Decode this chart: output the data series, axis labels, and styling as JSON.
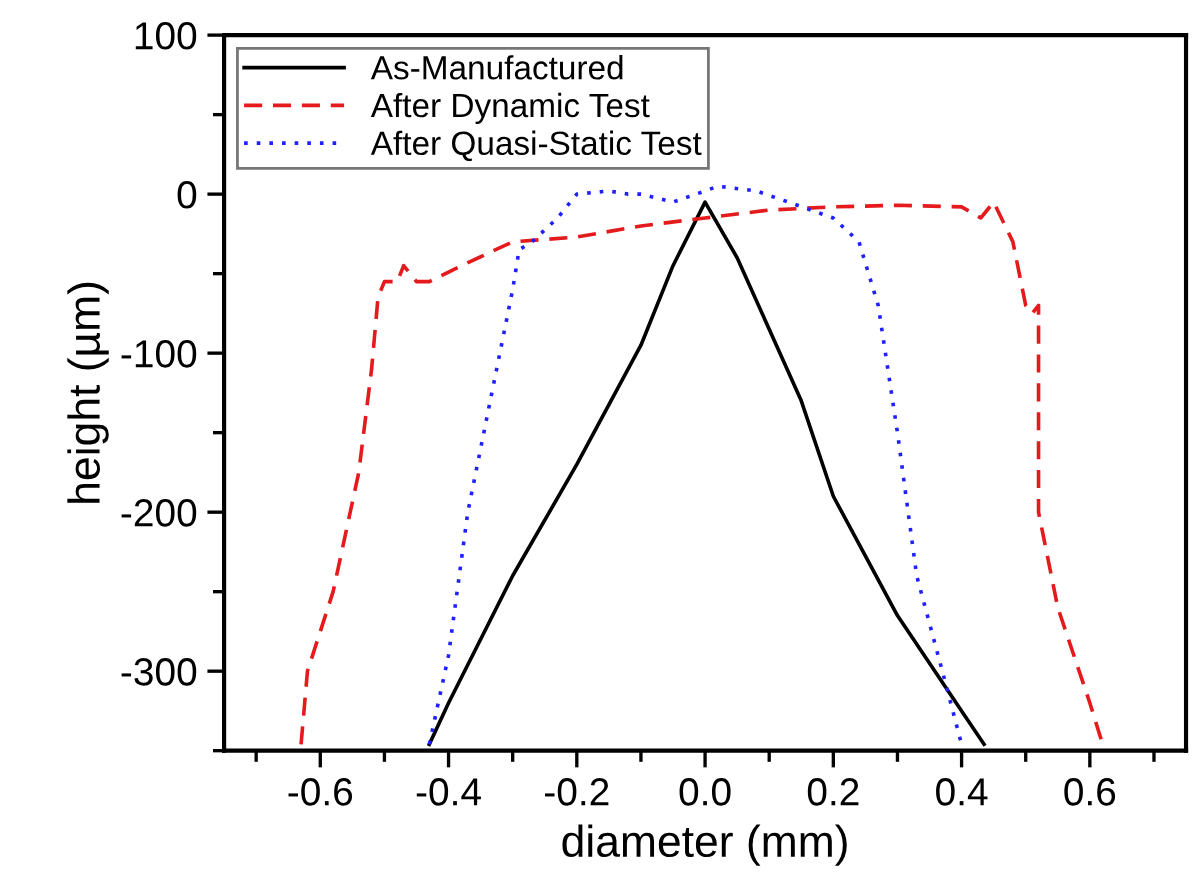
{
  "chart_data": {
    "type": "line",
    "xlabel": "diameter (mm)",
    "ylabel": "height (µm)",
    "xlim": [
      -0.75,
      0.75
    ],
    "xticks": [
      {
        "value": -0.6,
        "label": "-0.6"
      },
      {
        "value": -0.4,
        "label": "-0.4"
      },
      {
        "value": -0.2,
        "label": "-0.2"
      },
      {
        "value": 0,
        "label": "0.0"
      },
      {
        "value": 0.2,
        "label": "0.2"
      },
      {
        "value": 0.4,
        "label": "0.4"
      },
      {
        "value": 0.6,
        "label": "0.6"
      }
    ],
    "ylim": [
      -350,
      100
    ],
    "yticks": [
      -300,
      -200,
      -100,
      0,
      100
    ],
    "grid": false,
    "legend": "top left",
    "series": [
      {
        "name": "As-Manufactured",
        "color": "#000000",
        "line_style": "solid",
        "x": [
          -0.43,
          -0.4,
          -0.3,
          -0.2,
          -0.1,
          -0.05,
          0,
          0.05,
          0.1,
          0.15,
          0.2,
          0.3,
          0.4,
          0.435
        ],
        "values": [
          -346,
          -320,
          -240,
          -170,
          -95,
          -45,
          -5,
          -40,
          -85,
          -130,
          -190,
          -265,
          -325,
          -346
        ]
      },
      {
        "name": "After Dynamic Test",
        "color": "#e41a1c",
        "line_style": "dashed",
        "x": [
          -0.63,
          -0.62,
          -0.58,
          -0.54,
          -0.52,
          -0.51,
          -0.5,
          -0.48,
          -0.47,
          -0.45,
          -0.43,
          -0.38,
          -0.3,
          -0.2,
          -0.1,
          0,
          0.1,
          0.2,
          0.3,
          0.4,
          0.43,
          0.45,
          0.48,
          0.5,
          0.51,
          0.52,
          0.52,
          0.55,
          0.6,
          0.62
        ],
        "values": [
          -346,
          -300,
          -250,
          -175,
          -110,
          -65,
          -55,
          -55,
          -45,
          -55,
          -55,
          -45,
          -30,
          -27,
          -20,
          -15,
          -10,
          -8,
          -7,
          -8,
          -15,
          -5,
          -30,
          -70,
          -75,
          -70,
          -200,
          -260,
          -320,
          -346
        ]
      },
      {
        "name": "After Quasi-Static Test",
        "color": "#1f1fff",
        "line_style": "dotted",
        "x": [
          -0.43,
          -0.4,
          -0.37,
          -0.33,
          -0.3,
          -0.29,
          -0.27,
          -0.23,
          -0.2,
          -0.15,
          -0.12,
          -0.1,
          -0.05,
          0,
          0.02,
          0.08,
          0.13,
          0.2,
          0.24,
          0.27,
          0.3,
          0.33,
          0.37,
          0.4
        ],
        "values": [
          -346,
          -290,
          -200,
          -120,
          -60,
          -35,
          -30,
          -15,
          0,
          2,
          0,
          0,
          -5,
          2,
          5,
          2,
          -5,
          -15,
          -30,
          -70,
          -150,
          -240,
          -300,
          -346
        ]
      }
    ]
  }
}
